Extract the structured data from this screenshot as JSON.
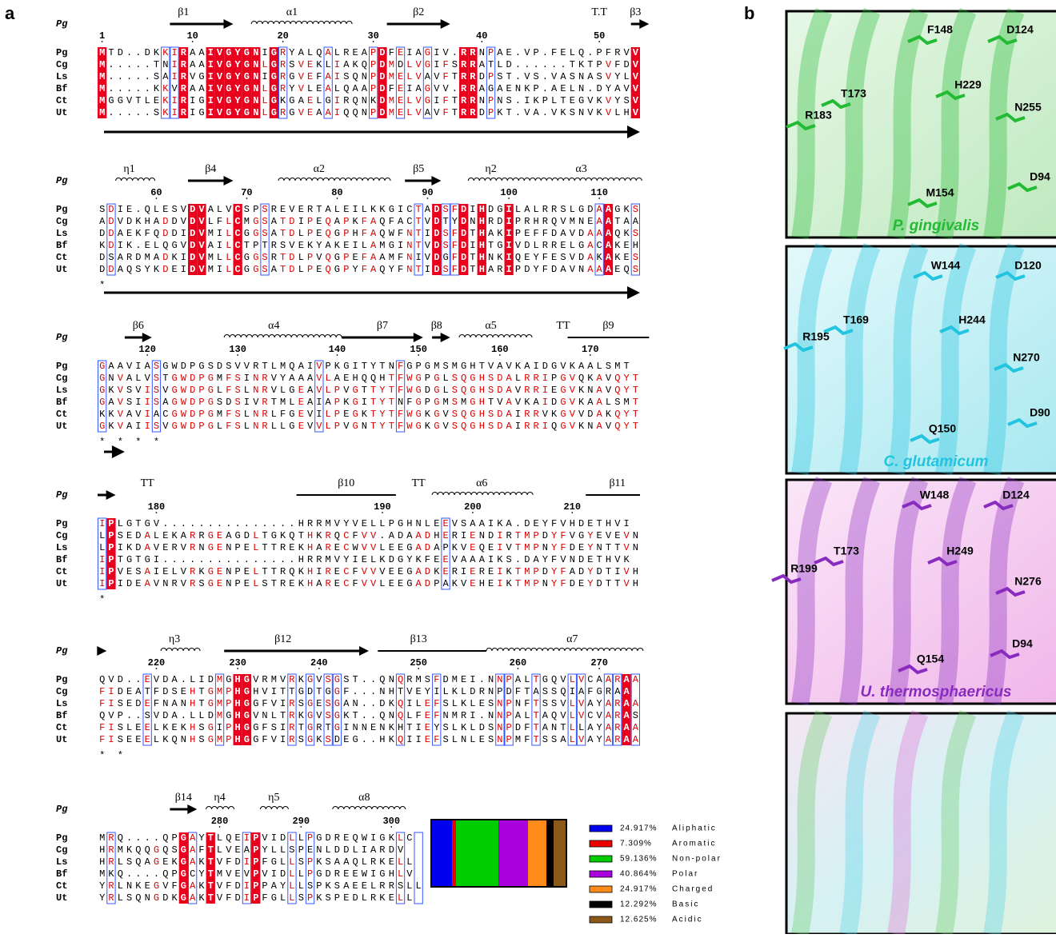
{
  "panel_labels": [
    "a",
    "b"
  ],
  "alignment": {
    "reference": "Pg",
    "species": [
      "Pg",
      "Cg",
      "Ls",
      "Bf",
      "Ct",
      "Ut"
    ],
    "blocks": [
      {
        "labels": [
          "β1",
          "α1",
          "β2",
          "T.T",
          "β3"
        ],
        "numbers": [
          "1",
          "10",
          "20",
          "30",
          "40",
          "50"
        ],
        "sequences": [
          "MTD..DKKIRAAIVGYGNIGRYALQALREAPDFEIAGIV.RRNPAE.VP.FELQ.PFRVV",
          "M.....TNIRAAIVGYGNLGRSVEKLIAKQPDMDLVGIFSRRATLD......TKTPVFDV",
          "M.....SAIRVGIVGYGNIGRGVEFAISQNPDMELVAVFTRRDPST.VS.VASNASVYLV",
          "M.....KKVRAAIVGYGNLGRYVLEALQAAPDFEIAGVV.RRAGAENKP.AELN.DYAVV",
          "MGGVTLEKIRIGIVGYGNLGKGAELGIRQNKDMELVGIFTRRNPNS.IKPLTEGVKVYSV",
          "M.....SKIRIGIVGYGNLGRGVEAAIQQNPDMELVAVFTRRDPKT.VA.VKSNVKVLHV"
        ]
      },
      {
        "labels": [
          "η1",
          "β4",
          "α2",
          "β5",
          "η2",
          "α3"
        ],
        "numbers": [
          "60",
          "70",
          "80",
          "90",
          "100",
          "110"
        ],
        "sequences": [
          "SDIE.QLESVDVALVCSPSREVERTALEILKKGICTADSFDIHDGILALRRSLGDAAGKS",
          "ADVDKHADDVDVLFLCMGSATDIPEQAPKFAQFACTVDTYDNHRDIPRHRQVMNEAATAA",
          "DDAEKFQDDIDVMILCGGSATDLPEQGPHFAQWFNTIDSFDTHAKIPEFFDAVDAAAQKS",
          "KDIK.ELQGVDVAILCTPTRSVEKYAKEILAMGINTVDSFDIHTGIVDLRRELGACAKEH",
          "DSARDMADKIDVMLLCGGSRTDLPVQGPEFAAMFNIVDGFDTHNKIQEYFESVDAKAKES",
          "DDAQSYKDEIDVMILCGGSATDLPEQGPYFAQYFNTIDSFDTHARIPDYFDAVNAAAEQS"
        ],
        "marks": "                                     *"
      },
      {
        "labels": [
          "β6",
          "α4",
          "β7",
          "β8",
          "α5",
          "TT",
          "β9"
        ],
        "numbers": [
          "120",
          "130",
          "140",
          "150",
          "160",
          "170"
        ],
        "sequences": [
          "GAAVIASGWDPGSDSVVRTLMQAIVPKGITYTNFGPGMSMGHTVAVKAIDGVKAALSMT",
          "GNVALVSTGWDPGMFSINRVYAAAVLAEHQQHTFWGPGLSQGHSDALRRIPGVQKAVQYT",
          "GKVSVISVGWDPGLFSLNRVLGEAVLPVGTTYTFWGDGLSQGHSDAVRRIEGVKNAVQYT",
          "GAVSIISAGWDPGSDSIVRTMLEAIAPKGITYTNFGPGMSMGHTVAVKAIDGVKAALSMT",
          "KKVAVIACGWDPGMFSLNRLFGEVILPEGKTYTFWGKGVSQGHSDAIRRVKGVVDAKQYT",
          "GKVAIISVGWDPGLFSLNRLLGEVVLPVGNTYTFWGKGVSQGHSDAIRRIQGVKNAVQYT"
        ],
        "marks": "          *                       *     *                  *"
      },
      {
        "labels": [
          "TT",
          "β10",
          "TT",
          "α6",
          "β11"
        ],
        "numbers": [
          "180",
          "190",
          "200",
          "210"
        ],
        "sequences": [
          "IPLGTGV...............HRRMVYVELLPGHNLEEVSAAIKA.DEYFVHDETHVI",
          "LPSEDALEKARRGEAGDLTGKQTHKRQCFVV.ADAADHERIENDIRTMPDYFVGYEVEVN",
          "LPIKDAVERVRNGENPELTTREKHARECWVVLEEGADAPKVEQEIVTMPNYFDEYNTTVN",
          "IPTGTGI...............HRRMVYIELKDGYKFEEVAAAIKS.DAYFVNDETHVK",
          "IPVESAIELVRKGENPELTTRQKHIRECFVVVEEGADKERIEREIKTMPDYFADYDTIVH",
          "IPIDEAVNRVRSGENPELSTREKHARECFVVLEEGADPAKVEHEIKTMPNYFDEYDTTVH"
        ],
        "marks": "                         *"
      },
      {
        "labels": [
          "η3",
          "β12",
          "β13",
          "α7"
        ],
        "numbers": [
          "220",
          "230",
          "240",
          "250",
          "260",
          "270"
        ],
        "sequences": [
          "QVD..EVDA.LIDMGHGVRMVRKGVSGST..QNQRMSFDMEI.NNPALTGQVLVCAARAA",
          "FIDEATFDSEHTGMPHGHVITTGDTGGF...NHTVEYILKLDRNPDFTASSQIAFGRAA",
          "FISEDEFNANHTGMPHGGFVIRSGESGAN..DKQILEFSLKLESNPNFTSSVLVAYARAA",
          "QVP..SVDA.LLDMGHGVNLTRKGVSGKT..QNQLFEFNMRI.NNPALTAQVLVCVARAS",
          "FISLEELKEKHSGIPHGGFSIRTGRTGINNENKHTIEYSLKLDSNPDFTANTLLAYARAA",
          "FISEEELKQNHSGMPHGGFVIRSGKSDEG..HKQIIEFSLNLESNPMFTSSALVAYARAA"
        ],
        "marks": "               *                            *"
      },
      {
        "labels": [
          "β14",
          "η4",
          "η5",
          "α8"
        ],
        "numbers": [
          "280",
          "290",
          "300"
        ],
        "sequences": [
          "MRQ....QPGAYTLQEIPVIDLLPGDREQWIGKLC",
          "HRMKQQGQSGAFTLVEAPYLLSPENLDDLIARDV",
          "HRLSQAGEKGAKTVFDIPFGLLSPKSAAQLRKELL",
          "MKQ....QPGCYTMVEVPVIDLLPGDREEWIGHLV",
          "YRLNKEGVFGAKTVFDIPPAYLLSPKSAEELRRSLL",
          "YRLSQNGDKGAKTVFDIPFGLLSPKSPEDLRKELL"
        ]
      }
    ]
  },
  "legend": [
    {
      "percent": "24.917%",
      "name": "Aliphatic",
      "color": "#0000ee"
    },
    {
      "percent": "7.309%",
      "name": "Aromatic",
      "color": "#ee0000"
    },
    {
      "percent": "59.136%",
      "name": "Non-polar",
      "color": "#00cc00"
    },
    {
      "percent": "40.864%",
      "name": "Polar",
      "color": "#aa00dd"
    },
    {
      "percent": "24.917%",
      "name": "Charged",
      "color": "#ff8c1a"
    },
    {
      "percent": "12.292%",
      "name": "Basic",
      "color": "#000000"
    },
    {
      "percent": "12.625%",
      "name": "Acidic",
      "color": "#8b5a1b"
    }
  ],
  "structures": [
    {
      "organism": "P. gingivalis",
      "color": "#22bb33",
      "residues": [
        "F148",
        "D124",
        "T173",
        "H229",
        "R183",
        "N255",
        "D94",
        "M154"
      ]
    },
    {
      "organism": "C. glutamicum",
      "color": "#22c4e0",
      "residues": [
        "W144",
        "D120",
        "T169",
        "H244",
        "R195",
        "N270",
        "D90",
        "Q150"
      ]
    },
    {
      "organism": "U. thermosphaericus",
      "color": "#8a2bbf",
      "residues": [
        "W148",
        "D124",
        "T173",
        "H249",
        "R199",
        "N276",
        "D94",
        "Q154"
      ]
    },
    {
      "organism": null,
      "color": null,
      "residues": []
    }
  ]
}
